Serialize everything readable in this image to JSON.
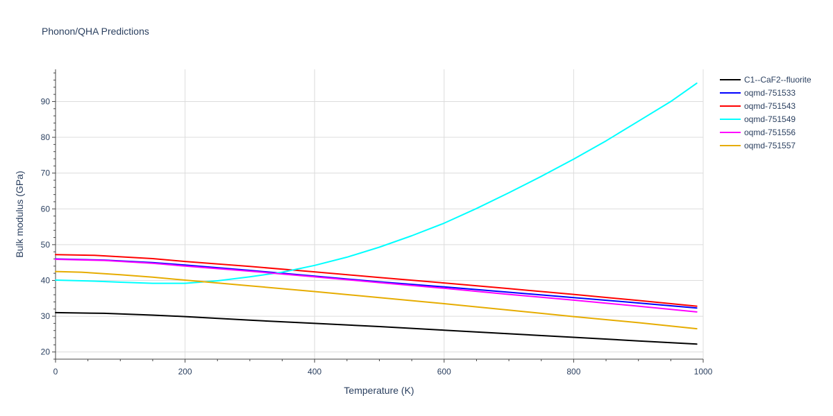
{
  "title": "Phonon/QHA Predictions",
  "chart_data": {
    "type": "line",
    "title": "Phonon/QHA Predictions",
    "xlabel": "Temperature (K)",
    "ylabel": "Bulk modulus (GPa)",
    "xlim": [
      0,
      1000
    ],
    "ylim": [
      18,
      99
    ],
    "x_ticks": [
      0,
      200,
      400,
      600,
      800,
      1000
    ],
    "y_ticks": [
      20,
      30,
      40,
      50,
      60,
      70,
      80,
      90
    ],
    "grid": true,
    "legend_position": "top-right",
    "series": [
      {
        "name": "C1--CaF2--fluorite",
        "color": "#000000",
        "x": [
          0,
          75,
          150,
          200,
          300,
          400,
          500,
          600,
          700,
          800,
          900,
          990
        ],
        "y": [
          31.0,
          30.8,
          30.3,
          29.9,
          28.9,
          28.0,
          27.1,
          26.1,
          25.1,
          24.1,
          23.1,
          22.2
        ]
      },
      {
        "name": "oqmd-751533",
        "color": "#0000ff",
        "x": [
          0,
          75,
          150,
          200,
          300,
          400,
          500,
          600,
          700,
          800,
          900,
          990
        ],
        "y": [
          46.0,
          45.7,
          45.0,
          44.3,
          42.8,
          41.2,
          39.6,
          38.2,
          36.7,
          35.2,
          33.7,
          32.3
        ]
      },
      {
        "name": "oqmd-751543",
        "color": "#ff0000",
        "x": [
          0,
          60,
          150,
          200,
          300,
          400,
          500,
          600,
          700,
          800,
          900,
          990
        ],
        "y": [
          47.2,
          47.0,
          46.1,
          45.3,
          43.9,
          42.4,
          40.8,
          39.3,
          37.7,
          36.1,
          34.4,
          32.8
        ]
      },
      {
        "name": "oqmd-751549",
        "color": "#00ffff",
        "x": [
          0,
          60,
          100,
          150,
          200,
          250,
          300,
          350,
          400,
          450,
          500,
          550,
          600,
          650,
          700,
          750,
          800,
          850,
          900,
          950,
          990
        ],
        "y": [
          40.1,
          39.8,
          39.5,
          39.2,
          39.2,
          39.9,
          41.0,
          42.3,
          44.2,
          46.5,
          49.3,
          52.5,
          56.0,
          60.1,
          64.5,
          69.1,
          73.9,
          79.0,
          84.5,
          90.0,
          95.1
        ]
      },
      {
        "name": "oqmd-751556",
        "color": "#ff00ff",
        "x": [
          0,
          75,
          150,
          200,
          300,
          400,
          500,
          600,
          700,
          800,
          900,
          990
        ],
        "y": [
          45.9,
          45.6,
          44.8,
          44.0,
          42.6,
          41.0,
          39.4,
          37.8,
          36.1,
          34.5,
          32.8,
          31.2
        ]
      },
      {
        "name": "oqmd-751557",
        "color": "#e6ac00",
        "x": [
          0,
          40,
          100,
          150,
          200,
          300,
          400,
          500,
          600,
          700,
          800,
          900,
          990
        ],
        "y": [
          42.5,
          42.3,
          41.6,
          40.9,
          40.1,
          38.5,
          36.9,
          35.2,
          33.5,
          31.7,
          29.9,
          28.2,
          26.5
        ]
      }
    ]
  }
}
